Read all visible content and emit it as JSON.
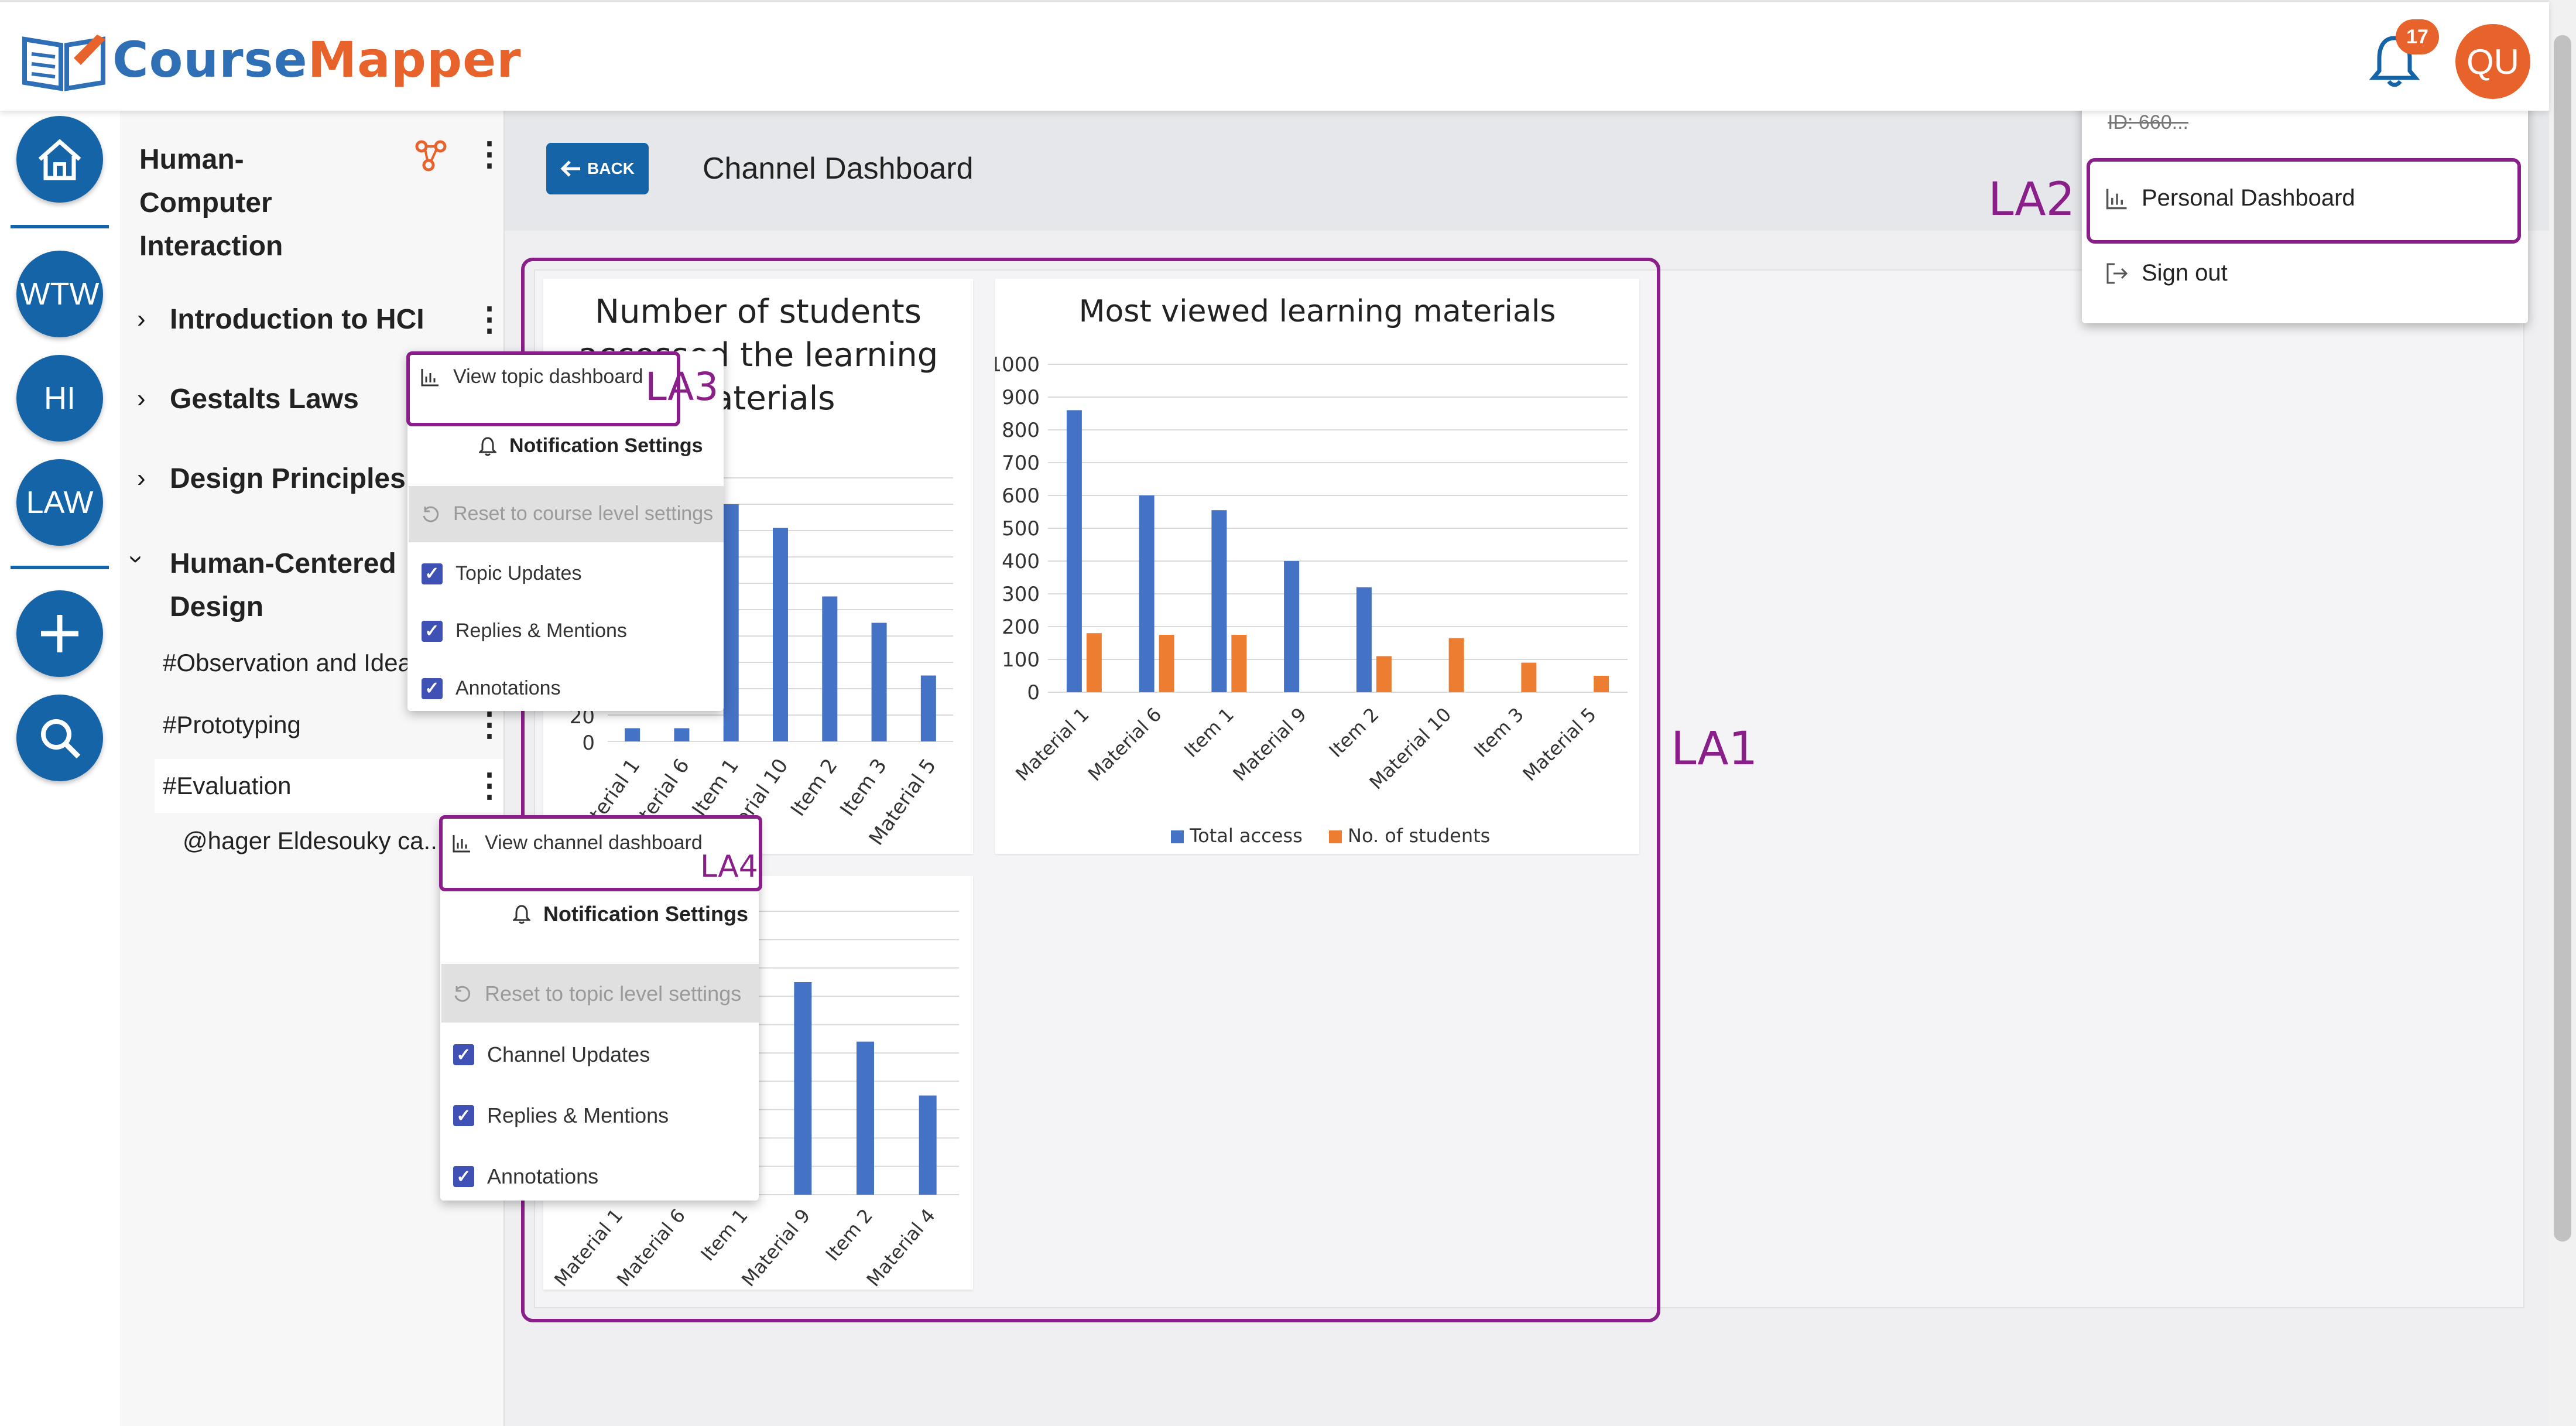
{
  "app": {
    "brand_part1": "Course",
    "brand_part2": "Mapper",
    "notification_count": "17",
    "user_initials": "QU"
  },
  "rail": {
    "items": [
      "WTW",
      "HI",
      "LAW"
    ]
  },
  "sidebar": {
    "course_title_lines": [
      "Human-",
      "Computer",
      "Interaction"
    ],
    "topics": [
      {
        "label": "Introduction to HCI"
      },
      {
        "label": "Gestalts Laws"
      },
      {
        "label": "Design Principles"
      },
      {
        "label_lines": [
          "Human-Centered",
          "Design"
        ]
      }
    ],
    "channels": [
      "#Observation and Idea",
      "#Prototyping",
      "#Evaluation"
    ],
    "annotation": "@hager Eldesouky ca..."
  },
  "main": {
    "back_label": "BACK",
    "title": "Channel Dashboard"
  },
  "user_menu": {
    "id_text": "ID: 660...",
    "personal_dashboard": "Personal Dashboard",
    "sign_out": "Sign out"
  },
  "topic_menu": {
    "view_dashboard": "View topic dashboard",
    "notification_settings": "Notification Settings",
    "reset": "Reset to course level settings",
    "options": [
      "Topic Updates",
      "Replies & Mentions",
      "Annotations"
    ]
  },
  "channel_menu": {
    "view_dashboard": "View channel dashboard",
    "notification_settings": "Notification Settings",
    "reset": "Reset to topic level settings",
    "options": [
      "Channel Updates",
      "Replies & Mentions",
      "Annotations"
    ]
  },
  "annotations": {
    "la1": "LA1",
    "la2": "LA2",
    "la3": "LA3",
    "la4": "LA4"
  },
  "colors": {
    "brand_blue": "#1564a8",
    "brand_orange": "#e8632b",
    "highlight": "#8a1f8a",
    "series_blue": "#4472c4",
    "series_orange": "#ed7d31"
  },
  "chart_data": [
    {
      "type": "bar",
      "title": "Number of students accessed the learning materials",
      "categories": [
        "Material 1",
        "Material 6",
        "Item 1",
        "Material 10",
        "Item 2",
        "Item 3",
        "Material 5"
      ],
      "values": [
        10,
        10,
        180,
        162,
        110,
        90,
        50
      ],
      "ylim": [
        0,
        200
      ],
      "visible_ticks": [
        "20",
        "0"
      ]
    },
    {
      "type": "bar",
      "title": "Most viewed learning materials",
      "categories": [
        "Material 1",
        "Material 6",
        "Item 1",
        "Material 9",
        "Item 2",
        "Material 10",
        "Item 3",
        "Material 5"
      ],
      "series": [
        {
          "name": "Total access",
          "values": [
            860,
            600,
            555,
            400,
            320,
            0,
            0,
            0
          ]
        },
        {
          "name": "No. of students",
          "values": [
            180,
            175,
            175,
            0,
            110,
            165,
            90,
            50
          ]
        }
      ],
      "ylim": [
        0,
        1000
      ],
      "yticks": [
        0,
        100,
        200,
        300,
        400,
        500,
        600,
        700,
        800,
        900,
        1000
      ],
      "legend": "bottom",
      "grid": true
    },
    {
      "type": "bar",
      "categories": [
        "Material 1",
        "Material 6",
        "Item 1",
        "Material 9",
        "Item 2",
        "Material 4"
      ],
      "values": [
        0,
        0,
        0,
        75,
        54,
        35
      ],
      "ylim": [
        0,
        100
      ]
    }
  ]
}
